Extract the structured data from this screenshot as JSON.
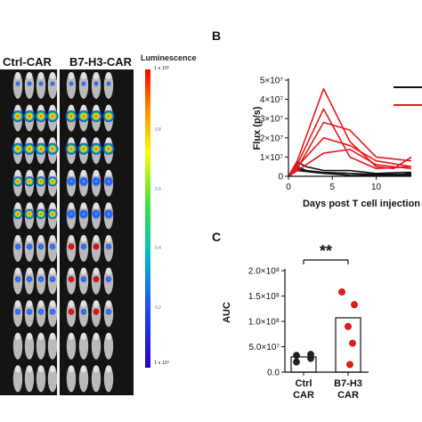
{
  "panel_a": {
    "ctrl_label": "Ctrl-CAR",
    "b7h3_label": "B7-H3-CAR",
    "scale_title": "Luminescence",
    "scale_max": "1 x 10⁶",
    "scale_min": "1 x 10⁴",
    "scale_mid_ticks": [
      "0.8",
      "0.6",
      "0.4",
      "0.2"
    ],
    "rows": 10,
    "mice_per_group": 4
  },
  "panel_b_letter": "B",
  "panel_c_letter": "C",
  "chart_data": [
    {
      "type": "line",
      "xlabel": "Days post T cell injection",
      "ylabel": "Flux (p/s)",
      "xlim": [
        0,
        14
      ],
      "ylim": [
        0,
        50000000
      ],
      "xticks": [
        0,
        5,
        10
      ],
      "yticks": [
        {
          "value": 0,
          "label": "0"
        },
        {
          "value": 10000000,
          "label": "1×10⁷"
        },
        {
          "value": 20000000,
          "label": "2×10⁷"
        },
        {
          "value": 30000000,
          "label": "3×10⁷"
        },
        {
          "value": 40000000,
          "label": "4×10⁷"
        },
        {
          "value": 50000000,
          "label": "5×10⁷"
        }
      ],
      "legend": "top-right",
      "series": [
        {
          "group": "ctrl",
          "color": "#111111",
          "points": [
            [
              0,
              0
            ],
            [
              1,
              5000000
            ],
            [
              2,
              3000000
            ],
            [
              4,
              2000000
            ],
            [
              7,
              1500000
            ],
            [
              10,
              1000000
            ],
            [
              13,
              1000000
            ],
            [
              14,
              1500000
            ]
          ]
        },
        {
          "group": "ctrl",
          "color": "#111111",
          "points": [
            [
              0,
              0
            ],
            [
              1,
              7500000
            ],
            [
              2,
              5000000
            ],
            [
              4,
              3000000
            ],
            [
              7,
              3000000
            ],
            [
              10,
              1500000
            ],
            [
              13,
              2000000
            ],
            [
              14,
              2000000
            ]
          ]
        },
        {
          "group": "ctrl",
          "color": "#111111",
          "points": [
            [
              0,
              0
            ],
            [
              1,
              4000000
            ],
            [
              3,
              2000000
            ],
            [
              7,
              1500000
            ],
            [
              10,
              500000
            ],
            [
              14,
              1000000
            ]
          ]
        },
        {
          "group": "ctrl",
          "color": "#111111",
          "points": [
            [
              0,
              0
            ],
            [
              1,
              3000000
            ],
            [
              4,
              1500000
            ],
            [
              7,
              500000
            ],
            [
              10,
              200000
            ],
            [
              14,
              500000
            ]
          ]
        },
        {
          "group": "b7h3",
          "color": "#e8181c",
          "points": [
            [
              0,
              0
            ],
            [
              1,
              8000000
            ],
            [
              4,
              45500000
            ],
            [
              7,
              18000000
            ],
            [
              10,
              5000000
            ],
            [
              12,
              4000000
            ],
            [
              14,
              10000000
            ]
          ]
        },
        {
          "group": "b7h3",
          "color": "#e8181c",
          "points": [
            [
              0,
              0
            ],
            [
              1,
              6000000
            ],
            [
              4,
              35000000
            ],
            [
              7,
              10000000
            ],
            [
              10,
              4000000
            ],
            [
              14,
              5000000
            ]
          ]
        },
        {
          "group": "b7h3",
          "color": "#e8181c",
          "points": [
            [
              0,
              0
            ],
            [
              1,
              4000000
            ],
            [
              4,
              28000000
            ],
            [
              7,
              24000000
            ],
            [
              10,
              10000000
            ],
            [
              14,
              8000000
            ]
          ]
        },
        {
          "group": "b7h3",
          "color": "#e8181c",
          "points": [
            [
              0,
              0
            ],
            [
              1,
              5000000
            ],
            [
              4,
              20000000
            ],
            [
              7,
              16000000
            ],
            [
              10,
              8000000
            ],
            [
              14,
              5000000
            ]
          ]
        },
        {
          "group": "b7h3",
          "color": "#e8181c",
          "points": [
            [
              0,
              0
            ],
            [
              1,
              3000000
            ],
            [
              4,
              12000000
            ],
            [
              7,
              14000000
            ],
            [
              10,
              6000000
            ],
            [
              14,
              4000000
            ]
          ]
        }
      ]
    },
    {
      "type": "bar",
      "categories": [
        "Ctrl\nCAR",
        "B7-H3\nCAR"
      ],
      "values": [
        30000000,
        107000000
      ],
      "ylabel": "AUC",
      "ylim": [
        0,
        200000000
      ],
      "yticks": [
        {
          "value": 0,
          "label": "0.0"
        },
        {
          "value": 50000000,
          "label": "5.0×10⁷"
        },
        {
          "value": 100000000,
          "label": "1.0×10⁸"
        },
        {
          "value": 150000000,
          "label": "1.5×10⁸"
        },
        {
          "value": 200000000,
          "label": "2.0×10⁸"
        }
      ],
      "points": [
        {
          "group": 0,
          "values": [
            33000000,
            27000000,
            20000000,
            35000000
          ]
        },
        {
          "group": 1,
          "values": [
            158000000,
            133000000,
            90000000,
            57000000,
            15000000
          ]
        }
      ],
      "point_colors": [
        "#222222",
        "#e8181c"
      ],
      "annotation": "**"
    }
  ]
}
